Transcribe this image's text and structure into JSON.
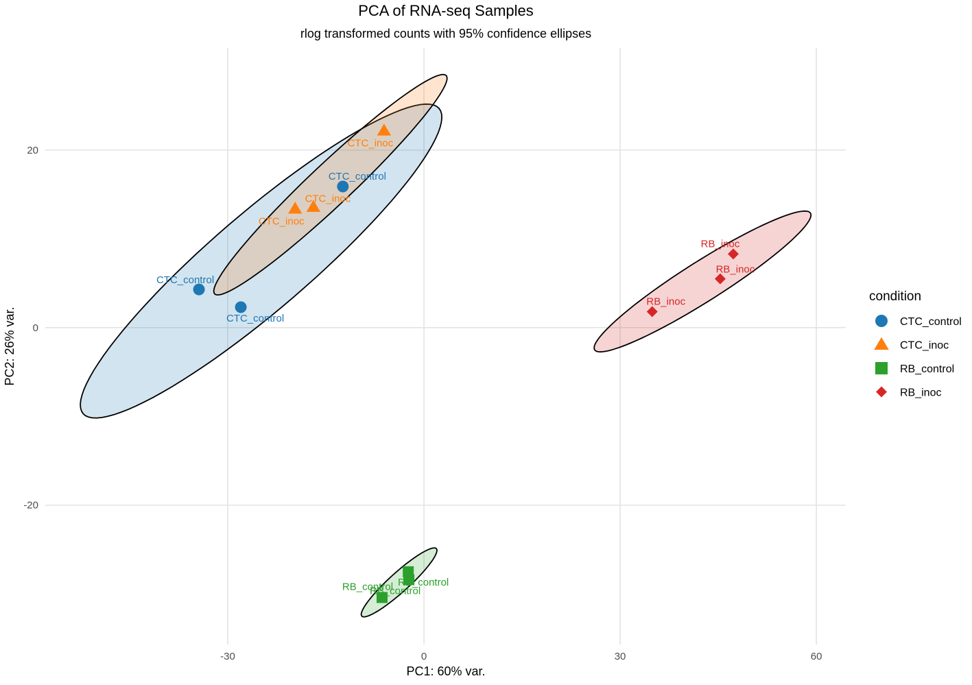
{
  "chart_data": {
    "type": "scatter",
    "title": "PCA of RNA-seq Samples",
    "subtitle": "rlog transformed counts with 95% confidence ellipses",
    "xlabel": "PC1: 60% var.",
    "ylabel": "PC2: 26% var.",
    "xlim": [
      -57.9,
      64.5
    ],
    "ylim": [
      -35.7,
      31.5
    ],
    "xticks": [
      -30,
      0,
      30,
      60
    ],
    "yticks": [
      -20,
      0,
      20
    ],
    "grid": true,
    "legend": {
      "title": "condition",
      "placement": "right"
    },
    "series": [
      {
        "name": "CTC_control",
        "color": "#1f77b4",
        "shape": "circle",
        "points": [
          {
            "x": -34.4,
            "y": 4.3
          },
          {
            "x": -28.0,
            "y": 2.3
          },
          {
            "x": -12.4,
            "y": 15.9
          }
        ],
        "ellipse": {
          "center": [
            -24.9,
            7.5
          ],
          "major_end": [
            2.3,
            24.7
          ],
          "minor_end": [
            -20.0,
            3.4
          ]
        }
      },
      {
        "name": "CTC_inoc",
        "color": "#ff7f0e",
        "shape": "triangle",
        "points": [
          {
            "x": -6.1,
            "y": 22.2
          },
          {
            "x": -19.7,
            "y": 13.4
          },
          {
            "x": -16.9,
            "y": 13.6
          }
        ],
        "ellipse": {
          "center": [
            -14.3,
            16.1
          ],
          "major_end": [
            3.4,
            28.4
          ],
          "minor_end": [
            -12.1,
            14.4
          ]
        }
      },
      {
        "name": "RB_control",
        "color": "#2ca02c",
        "shape": "square",
        "points": [
          {
            "x": -6.4,
            "y": -30.4
          },
          {
            "x": -2.4,
            "y": -27.5
          },
          {
            "x": -2.3,
            "y": -28.4
          }
        ],
        "ellipse": {
          "center": [
            -3.8,
            -28.7
          ],
          "major_end": [
            1.9,
            -24.9
          ],
          "minor_end": [
            -2.8,
            -29.5
          ]
        }
      },
      {
        "name": "RB_inoc",
        "color": "#d62728",
        "shape": "diamond",
        "points": [
          {
            "x": 47.3,
            "y": 8.3
          },
          {
            "x": 45.3,
            "y": 5.5
          },
          {
            "x": 34.9,
            "y": 1.8
          }
        ],
        "ellipse": {
          "center": [
            42.6,
            5.2
          ],
          "major_end": [
            59.1,
            12.9
          ],
          "minor_end": [
            44.2,
            3.3
          ]
        }
      }
    ]
  }
}
